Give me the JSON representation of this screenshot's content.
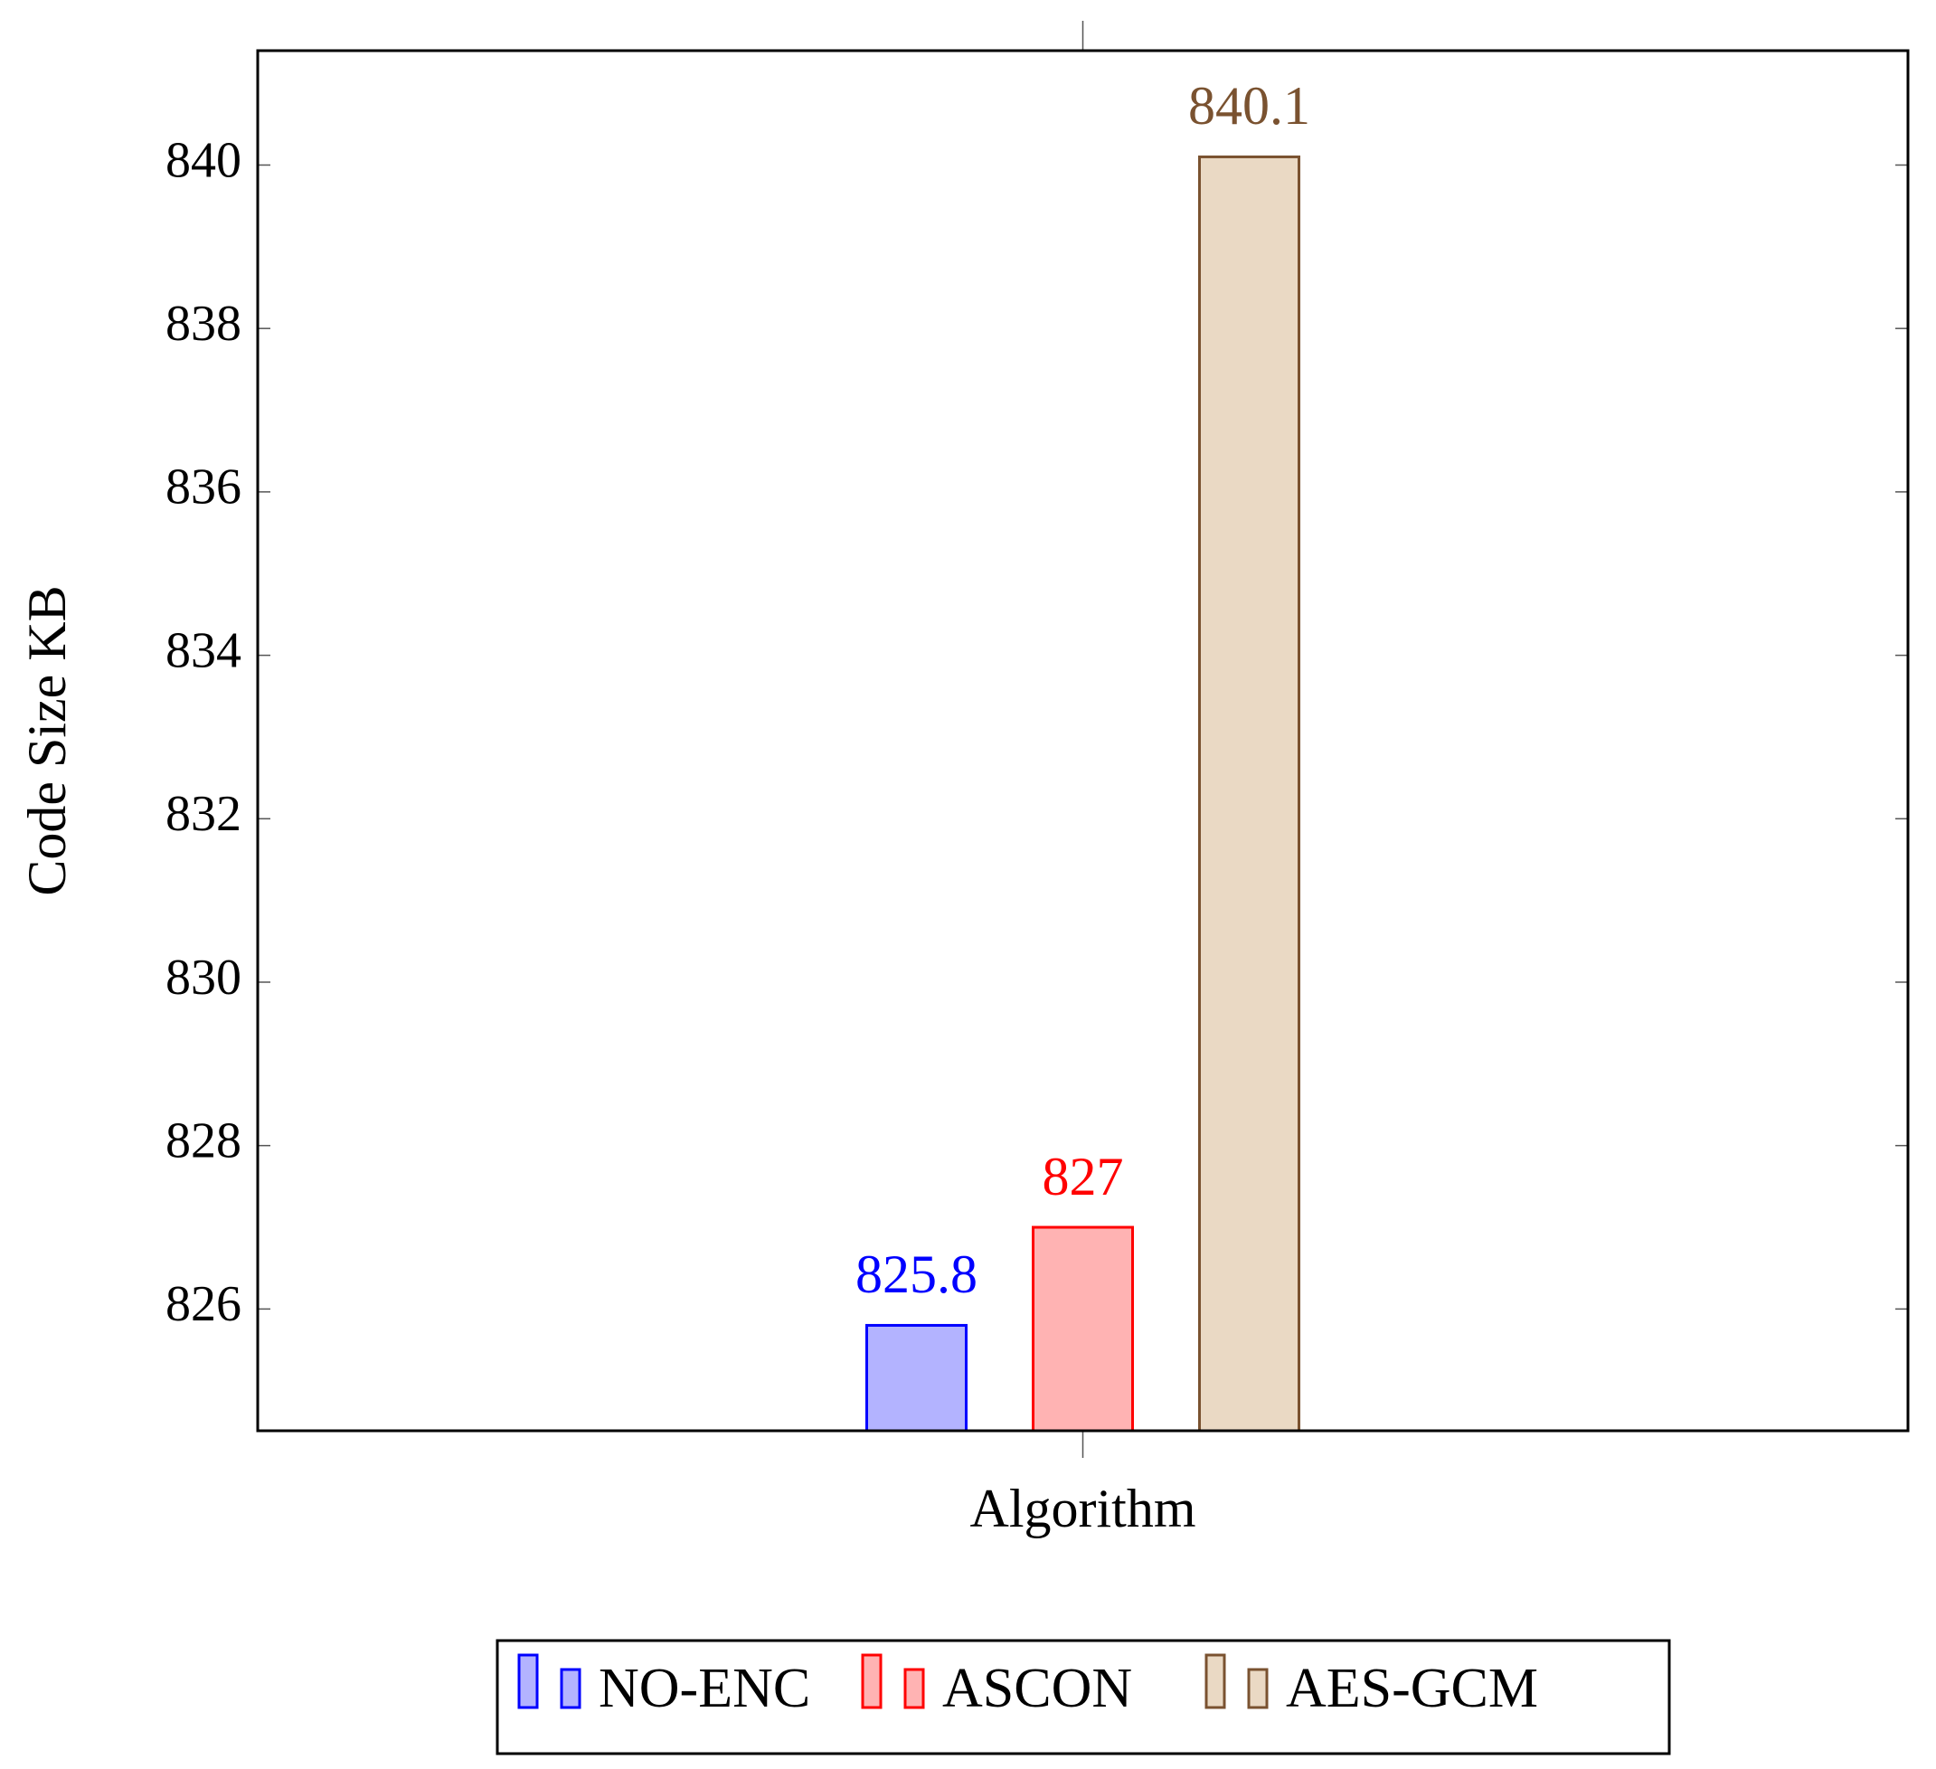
{
  "chart_data": {
    "type": "bar",
    "y_label": "Code Size KB",
    "categories": [
      "Algorithm"
    ],
    "series": [
      {
        "name": "NO-ENC",
        "color": "#0000ff",
        "fill": "#b3b3ff",
        "values": [
          825.8
        ]
      },
      {
        "name": "ASCON",
        "color": "#ff0000",
        "fill": "#ffb3b3",
        "values": [
          827
        ]
      },
      {
        "name": "AES-GCM",
        "color": "#7a5230",
        "fill": "#ead9c4",
        "values": [
          840.1
        ]
      }
    ],
    "ylim": [
      824.51,
      841.4
    ],
    "yticks": [
      826,
      828,
      830,
      832,
      834,
      836,
      838,
      840
    ],
    "legend": "bottom"
  }
}
